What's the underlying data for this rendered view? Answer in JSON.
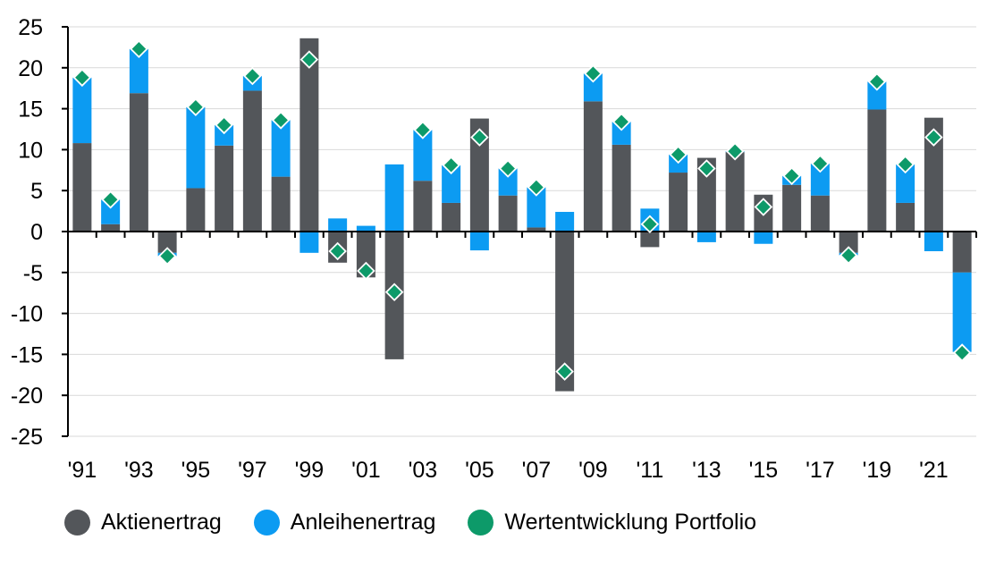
{
  "chart_data": {
    "type": "bar",
    "stacked": true,
    "categories": [
      "'91",
      "'92",
      "'93",
      "'94",
      "'95",
      "'96",
      "'97",
      "'98",
      "'99",
      "'00",
      "'01",
      "'02",
      "'03",
      "'04",
      "'05",
      "'06",
      "'07",
      "'08",
      "'09",
      "'10",
      "'11",
      "'12",
      "'13",
      "'14",
      "'15",
      "'16",
      "'17",
      "'18",
      "'19",
      "'20",
      "'21",
      "'22"
    ],
    "tick_labels": [
      "'91",
      "'93",
      "'95",
      "'97",
      "'99",
      "'01",
      "'03",
      "'05",
      "'07",
      "'09",
      "'11",
      "'13",
      "'15",
      "'17",
      "'19",
      "'21"
    ],
    "ylim": [
      -25,
      25
    ],
    "yticks": [
      25,
      20,
      15,
      10,
      5,
      0,
      -5,
      -10,
      -15,
      -20,
      -25
    ],
    "grid": true,
    "legend_position": "bottom-left",
    "series": [
      {
        "name": "Aktienertrag",
        "color": "#53565a",
        "kind": "bar",
        "values": [
          10.8,
          0.9,
          16.9,
          -2.6,
          5.3,
          10.5,
          17.2,
          6.7,
          23.6,
          -3.8,
          -5.6,
          -15.6,
          6.2,
          3.5,
          13.8,
          4.4,
          0.5,
          -19.5,
          15.9,
          10.6,
          -1.9,
          7.2,
          9.0,
          9.7,
          4.5,
          5.7,
          4.4,
          -2.6,
          14.9,
          3.5,
          13.9,
          -5.0
        ]
      },
      {
        "name": "Anleihenertrag",
        "color": "#0c9bf2",
        "kind": "bar",
        "values": [
          8.0,
          3.0,
          5.4,
          -0.4,
          9.9,
          2.5,
          1.8,
          6.9,
          -2.6,
          1.6,
          0.7,
          8.2,
          6.2,
          4.6,
          -2.3,
          3.3,
          4.9,
          2.4,
          3.4,
          2.8,
          2.8,
          2.2,
          -1.3,
          0.1,
          -1.5,
          1.1,
          3.9,
          -0.3,
          3.4,
          4.7,
          -2.4,
          -9.7
        ]
      },
      {
        "name": "Wertentwicklung Portfolio",
        "color": "#0d9a69",
        "kind": "marker",
        "values": [
          18.8,
          3.9,
          22.3,
          -3.0,
          15.2,
          13.0,
          19.0,
          13.6,
          21.0,
          -2.4,
          -4.8,
          -7.4,
          12.4,
          8.1,
          11.5,
          7.7,
          5.4,
          -17.1,
          19.3,
          13.4,
          0.9,
          9.4,
          7.7,
          9.8,
          3.0,
          6.8,
          8.3,
          -2.9,
          18.3,
          8.2,
          11.5,
          -14.8
        ]
      }
    ]
  }
}
